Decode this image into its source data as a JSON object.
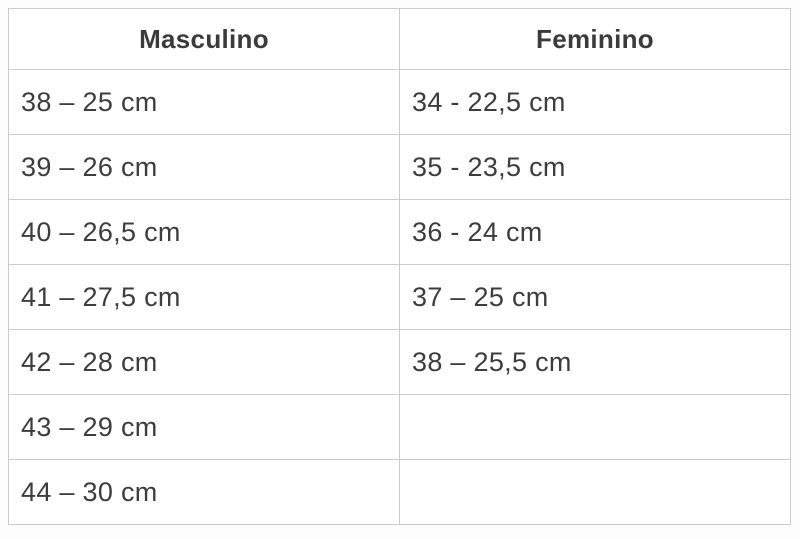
{
  "table": {
    "title_semantic": "shoe-size-conversion-table",
    "headers": [
      "Masculino",
      "Feminino"
    ],
    "rows": [
      [
        "38 – 25 cm",
        "34 - 22,5 cm"
      ],
      [
        "39 – 26 cm",
        "35 - 23,5 cm"
      ],
      [
        "40 – 26,5 cm",
        "36 - 24 cm"
      ],
      [
        "41 – 27,5 cm",
        "37 – 25 cm"
      ],
      [
        "42 – 28 cm",
        "38 – 25,5 cm"
      ],
      [
        "43 – 29 cm",
        ""
      ],
      [
        "44 – 30 cm",
        ""
      ]
    ],
    "colors": {
      "border": "#cccccc",
      "text": "#3d3d3d",
      "cell_background": "#ffffff",
      "page_background": "#fcfcfc"
    }
  }
}
